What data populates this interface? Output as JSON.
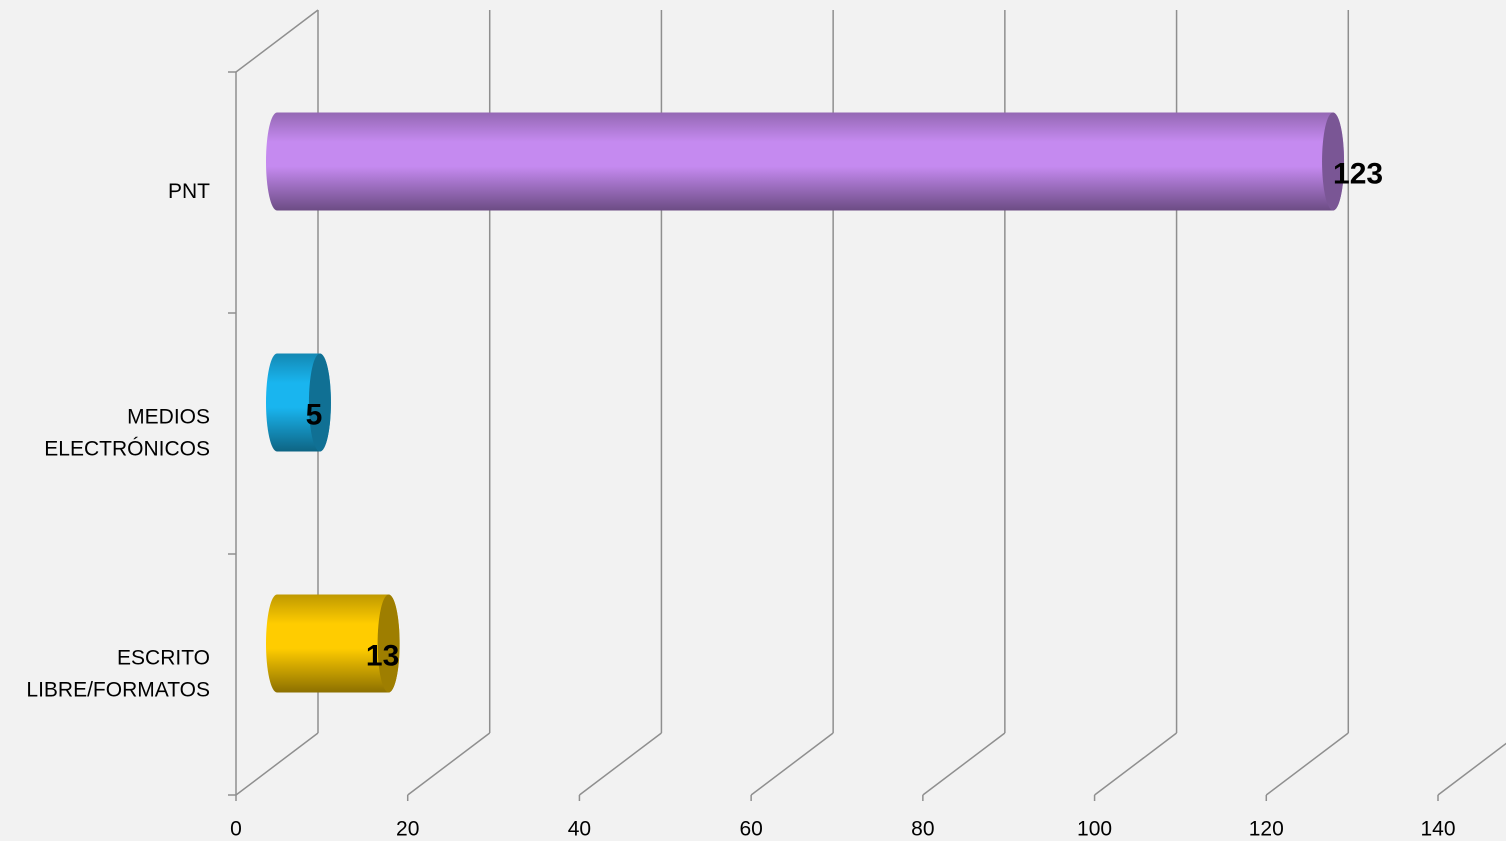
{
  "chart_data": {
    "type": "bar3d_horizontal",
    "categories": [
      "PNT",
      "MEDIOS ELECTRÓNICOS",
      "ESCRITO LIBRE/FORMATOS"
    ],
    "values": [
      123,
      5,
      13
    ],
    "colors": [
      "#c58af0",
      "#19b5ef",
      "#ffcc00"
    ],
    "xlim": [
      0,
      140
    ],
    "xticks": [
      0,
      20,
      40,
      60,
      80,
      100,
      120,
      140
    ],
    "grid": true
  }
}
